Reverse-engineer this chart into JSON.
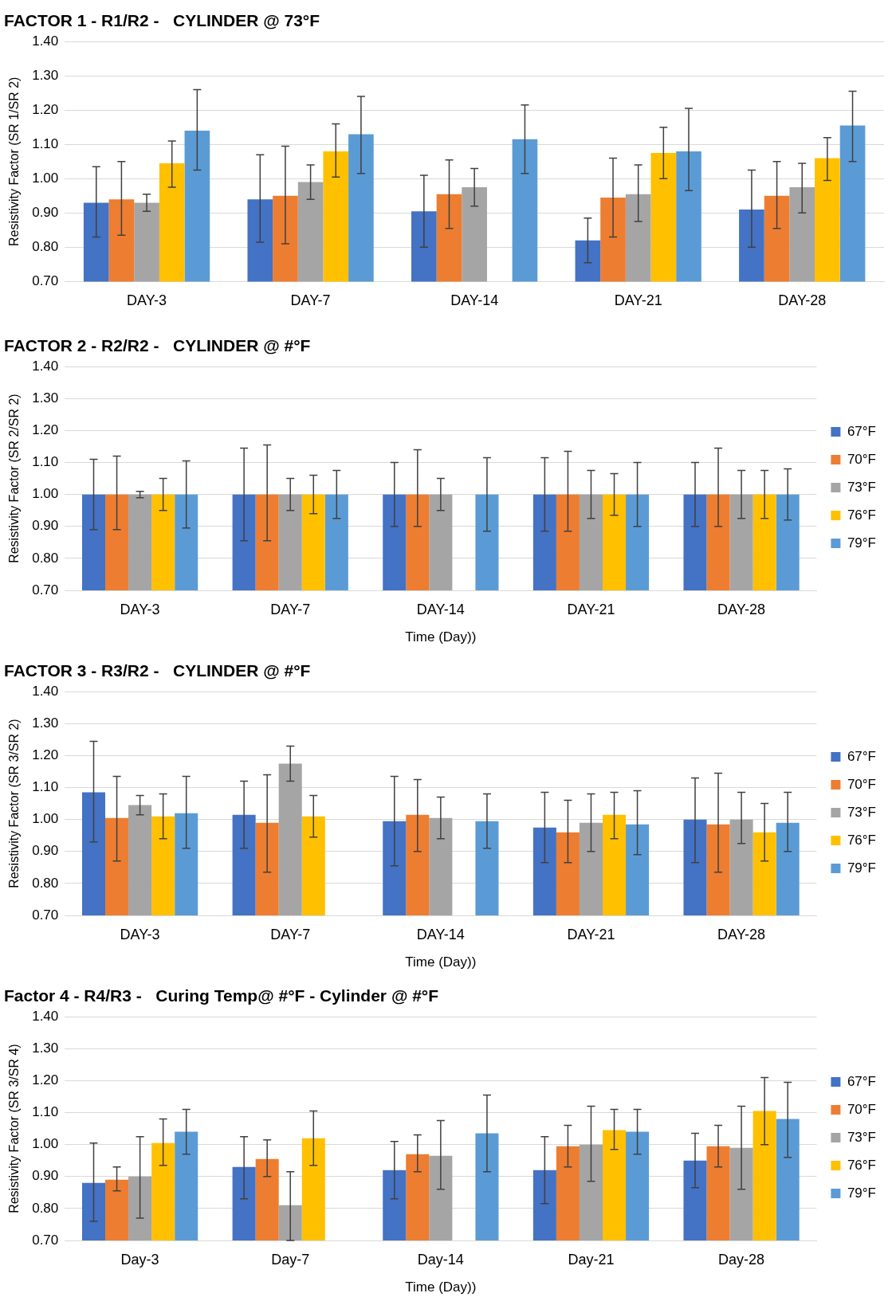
{
  "chart_data": [
    {
      "type": "bar",
      "title": "FACTOR 1 - R1/R2 -   CYLINDER @ 73°F",
      "ylabel": "Resistivity Factor (SR 1/SR 2)",
      "categories": [
        "DAY-3",
        "DAY-7",
        "DAY-14",
        "DAY-21",
        "DAY-28"
      ],
      "ylim": [
        0.7,
        1.4
      ],
      "yticks": [
        {
          "value": 0.7,
          "label": "0.70"
        },
        {
          "value": 0.8,
          "label": "0.80"
        },
        {
          "value": 0.9,
          "label": "0.90"
        },
        {
          "value": 1.0,
          "label": "1.00"
        },
        {
          "value": 1.1,
          "label": "1.10"
        },
        {
          "value": 1.2,
          "label": "1.20"
        },
        {
          "value": 1.3,
          "label": "1.30"
        },
        {
          "value": 1.4,
          "label": "1.40"
        }
      ],
      "grid": "y",
      "legend": false,
      "series": [
        {
          "color": "#4472c4",
          "values": [
            0.93,
            0.94,
            0.905,
            0.82,
            0.91
          ],
          "errors": [
            [
              0.83,
              1.035
            ],
            [
              0.815,
              1.07
            ],
            [
              0.8,
              1.01
            ],
            [
              0.755,
              0.885
            ],
            [
              0.8,
              1.025
            ]
          ]
        },
        {
          "color": "#ed7d31",
          "values": [
            0.94,
            0.95,
            0.955,
            0.945,
            0.95
          ],
          "errors": [
            [
              0.835,
              1.05
            ],
            [
              0.81,
              1.095
            ],
            [
              0.855,
              1.055
            ],
            [
              0.83,
              1.06
            ],
            [
              0.855,
              1.05
            ]
          ]
        },
        {
          "color": "#a5a5a5",
          "values": [
            0.93,
            0.99,
            0.975,
            0.955,
            0.975
          ],
          "errors": [
            [
              0.905,
              0.955
            ],
            [
              0.94,
              1.04
            ],
            [
              0.92,
              1.03
            ],
            [
              0.875,
              1.04
            ],
            [
              0.9,
              1.045
            ]
          ]
        },
        {
          "color": "#ffc000",
          "values": [
            1.045,
            1.08,
            null,
            1.075,
            1.06
          ],
          "errors": [
            [
              0.975,
              1.11
            ],
            [
              1.005,
              1.16
            ],
            null,
            [
              1.0,
              1.15
            ],
            [
              0.995,
              1.12
            ]
          ]
        },
        {
          "color": "#5b9bd5",
          "values": [
            1.14,
            1.13,
            1.115,
            1.08,
            1.155
          ],
          "errors": [
            [
              1.025,
              1.26
            ],
            [
              1.015,
              1.24
            ],
            [
              1.015,
              1.215
            ],
            [
              0.965,
              1.205
            ],
            [
              1.05,
              1.255
            ]
          ]
        }
      ]
    },
    {
      "type": "bar",
      "title": "FACTOR 2 - R2/R2 -   CYLINDER @ #°F",
      "xlabel": "Time (Day))",
      "ylabel": "Resistivity Factor (SR 2/SR 2)",
      "categories": [
        "DAY-3",
        "DAY-7",
        "DAY-14",
        "DAY-21",
        "DAY-28"
      ],
      "ylim": [
        0.7,
        1.4
      ],
      "yticks": [
        {
          "value": 0.7,
          "label": "0.70"
        },
        {
          "value": 0.8,
          "label": "0.80"
        },
        {
          "value": 0.9,
          "label": "0.90"
        },
        {
          "value": 1.0,
          "label": "1.00"
        },
        {
          "value": 1.1,
          "label": "1.10"
        },
        {
          "value": 1.2,
          "label": "1.20"
        },
        {
          "value": 1.3,
          "label": "1.30"
        },
        {
          "value": 1.4,
          "label": "1.40"
        }
      ],
      "grid": "y",
      "legend": "right",
      "series": [
        {
          "name": "67°F",
          "color": "#4472c4",
          "values": [
            1.0,
            1.0,
            1.0,
            1.0,
            1.0
          ],
          "errors": [
            [
              0.89,
              1.11
            ],
            [
              0.855,
              1.145
            ],
            [
              0.9,
              1.1
            ],
            [
              0.885,
              1.115
            ],
            [
              0.9,
              1.1
            ]
          ]
        },
        {
          "name": "70°F",
          "color": "#ed7d31",
          "values": [
            1.0,
            1.0,
            1.0,
            1.0,
            1.0
          ],
          "errors": [
            [
              0.89,
              1.12
            ],
            [
              0.855,
              1.155
            ],
            [
              0.9,
              1.14
            ],
            [
              0.885,
              1.135
            ],
            [
              0.9,
              1.145
            ]
          ]
        },
        {
          "name": "73°F",
          "color": "#a5a5a5",
          "values": [
            1.0,
            1.0,
            1.0,
            1.0,
            1.0
          ],
          "errors": [
            [
              0.99,
              1.01
            ],
            [
              0.95,
              1.05
            ],
            [
              0.95,
              1.05
            ],
            [
              0.925,
              1.075
            ],
            [
              0.925,
              1.075
            ]
          ]
        },
        {
          "name": "76°F",
          "color": "#ffc000",
          "values": [
            1.0,
            1.0,
            null,
            1.0,
            1.0
          ],
          "errors": [
            [
              0.95,
              1.05
            ],
            [
              0.94,
              1.06
            ],
            null,
            [
              0.935,
              1.065
            ],
            [
              0.925,
              1.075
            ]
          ]
        },
        {
          "name": "79°F",
          "color": "#5b9bd5",
          "values": [
            1.0,
            1.0,
            1.0,
            1.0,
            1.0
          ],
          "errors": [
            [
              0.895,
              1.105
            ],
            [
              0.925,
              1.075
            ],
            [
              0.885,
              1.115
            ],
            [
              0.9,
              1.1
            ],
            [
              0.92,
              1.08
            ]
          ]
        }
      ]
    },
    {
      "type": "bar",
      "title": "FACTOR 3 - R3/R2 -   CYLINDER @ #°F",
      "xlabel": "Time (Day))",
      "ylabel": "Resistivity Factor (SR 3/SR 2)",
      "categories": [
        "DAY-3",
        "DAY-7",
        "DAY-14",
        "DAY-21",
        "DAY-28"
      ],
      "ylim": [
        0.7,
        1.4
      ],
      "yticks": [
        {
          "value": 0.7,
          "label": "0.70"
        },
        {
          "value": 0.8,
          "label": "0.80"
        },
        {
          "value": 0.9,
          "label": "0.90"
        },
        {
          "value": 1.0,
          "label": "1.00"
        },
        {
          "value": 1.1,
          "label": "1.10"
        },
        {
          "value": 1.2,
          "label": "1.20"
        },
        {
          "value": 1.3,
          "label": "1.30"
        },
        {
          "value": 1.4,
          "label": "1.40"
        }
      ],
      "grid": "y",
      "legend": "right",
      "series": [
        {
          "name": "67°F",
          "color": "#4472c4",
          "values": [
            1.085,
            1.015,
            0.995,
            0.975,
            1.0
          ],
          "errors": [
            [
              0.93,
              1.245
            ],
            [
              0.91,
              1.12
            ],
            [
              0.855,
              1.135
            ],
            [
              0.865,
              1.085
            ],
            [
              0.865,
              1.13
            ]
          ]
        },
        {
          "name": "70°F",
          "color": "#ed7d31",
          "values": [
            1.005,
            0.99,
            1.015,
            0.96,
            0.985
          ],
          "errors": [
            [
              0.87,
              1.135
            ],
            [
              0.835,
              1.14
            ],
            [
              0.9,
              1.125
            ],
            [
              0.865,
              1.06
            ],
            [
              0.835,
              1.145
            ]
          ]
        },
        {
          "name": "73°F",
          "color": "#a5a5a5",
          "values": [
            1.045,
            1.175,
            1.005,
            0.99,
            1.0
          ],
          "errors": [
            [
              1.015,
              1.075
            ],
            [
              1.12,
              1.23
            ],
            [
              0.94,
              1.07
            ],
            [
              0.9,
              1.08
            ],
            [
              0.925,
              1.085
            ]
          ]
        },
        {
          "name": "76°F",
          "color": "#ffc000",
          "values": [
            1.01,
            1.01,
            null,
            1.015,
            0.96
          ],
          "errors": [
            [
              0.94,
              1.08
            ],
            [
              0.945,
              1.075
            ],
            null,
            [
              0.94,
              1.085
            ],
            [
              0.87,
              1.05
            ]
          ]
        },
        {
          "name": "79°F",
          "color": "#5b9bd5",
          "values": [
            1.02,
            null,
            0.995,
            0.985,
            0.99
          ],
          "errors": [
            [
              0.91,
              1.135
            ],
            null,
            [
              0.91,
              1.08
            ],
            [
              0.89,
              1.09
            ],
            [
              0.9,
              1.085
            ]
          ]
        }
      ]
    },
    {
      "type": "bar",
      "title": "Factor 4 - R4/R3 -   Curing Temp@ #°F - Cylinder @ #°F",
      "xlabel": "Time (Day))",
      "ylabel": "Resistivity Factor (SR 3/SR 4)",
      "categories": [
        "Day-3",
        "Day-7",
        "Day-14",
        "Day-21",
        "Day-28"
      ],
      "ylim": [
        0.7,
        1.4
      ],
      "yticks": [
        {
          "value": 0.7,
          "label": "0.70"
        },
        {
          "value": 0.8,
          "label": "0.80"
        },
        {
          "value": 0.9,
          "label": "0.90"
        },
        {
          "value": 1.0,
          "label": "1.00"
        },
        {
          "value": 1.1,
          "label": "1.10"
        },
        {
          "value": 1.2,
          "label": "1.20"
        },
        {
          "value": 1.3,
          "label": "1.30"
        },
        {
          "value": 1.4,
          "label": "1.40"
        }
      ],
      "grid": "y",
      "legend": "right",
      "series": [
        {
          "name": "67°F",
          "color": "#4472c4",
          "values": [
            0.88,
            0.93,
            0.92,
            0.92,
            0.95
          ],
          "errors": [
            [
              0.76,
              1.005
            ],
            [
              0.83,
              1.025
            ],
            [
              0.83,
              1.01
            ],
            [
              0.815,
              1.025
            ],
            [
              0.865,
              1.035
            ]
          ]
        },
        {
          "name": "70°F",
          "color": "#ed7d31",
          "values": [
            0.89,
            0.955,
            0.97,
            0.995,
            0.995
          ],
          "errors": [
            [
              0.855,
              0.93
            ],
            [
              0.9,
              1.015
            ],
            [
              0.915,
              1.03
            ],
            [
              0.93,
              1.06
            ],
            [
              0.93,
              1.06
            ]
          ]
        },
        {
          "name": "73°F",
          "color": "#a5a5a5",
          "values": [
            0.9,
            0.81,
            0.965,
            1.0,
            0.99
          ],
          "errors": [
            [
              0.77,
              1.025
            ],
            [
              0.7,
              0.915
            ],
            [
              0.86,
              1.075
            ],
            [
              0.885,
              1.12
            ],
            [
              0.86,
              1.12
            ]
          ]
        },
        {
          "name": "76°F",
          "color": "#ffc000",
          "values": [
            1.005,
            1.02,
            null,
            1.045,
            1.105
          ],
          "errors": [
            [
              0.935,
              1.08
            ],
            [
              0.935,
              1.105
            ],
            null,
            [
              0.985,
              1.11
            ],
            [
              1.0,
              1.21
            ]
          ]
        },
        {
          "name": "79°F",
          "color": "#5b9bd5",
          "values": [
            1.04,
            null,
            1.035,
            1.04,
            1.08
          ],
          "errors": [
            [
              0.97,
              1.11
            ],
            null,
            [
              0.915,
              1.155
            ],
            [
              0.97,
              1.11
            ],
            [
              0.96,
              1.195
            ]
          ]
        }
      ]
    }
  ]
}
